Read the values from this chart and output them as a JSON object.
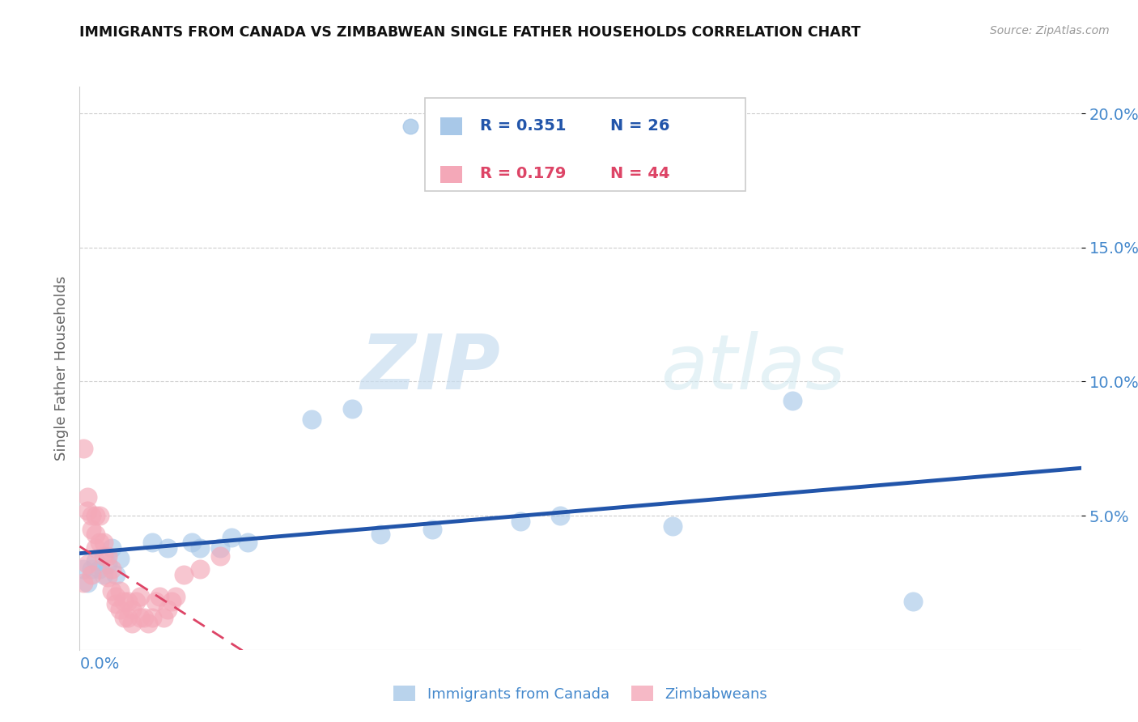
{
  "title": "IMMIGRANTS FROM CANADA VS ZIMBABWEAN SINGLE FATHER HOUSEHOLDS CORRELATION CHART",
  "source": "Source: ZipAtlas.com",
  "ylabel": "Single Father Households",
  "legend_labels": [
    "Immigrants from Canada",
    "Zimbabweans"
  ],
  "legend_r": [
    "R = 0.351",
    "R = 0.179"
  ],
  "legend_n": [
    "N = 26",
    "N = 44"
  ],
  "watermark_zip": "ZIP",
  "watermark_atlas": "atlas",
  "xlim": [
    0.0,
    0.25
  ],
  "ylim": [
    0.0,
    0.21
  ],
  "yticks": [
    0.05,
    0.1,
    0.15,
    0.2
  ],
  "ytick_labels": [
    "5.0%",
    "10.0%",
    "15.0%",
    "20.0%"
  ],
  "blue_color": "#a8c8e8",
  "pink_color": "#f4a8b8",
  "blue_line_color": "#2255aa",
  "pink_line_color": "#dd4466",
  "axis_label_color": "#4488cc",
  "canada_points": [
    [
      0.001,
      0.03
    ],
    [
      0.002,
      0.025
    ],
    [
      0.003,
      0.03
    ],
    [
      0.004,
      0.033
    ],
    [
      0.005,
      0.03
    ],
    [
      0.006,
      0.028
    ],
    [
      0.007,
      0.032
    ],
    [
      0.008,
      0.038
    ],
    [
      0.009,
      0.028
    ],
    [
      0.01,
      0.034
    ],
    [
      0.018,
      0.04
    ],
    [
      0.022,
      0.038
    ],
    [
      0.028,
      0.04
    ],
    [
      0.03,
      0.038
    ],
    [
      0.035,
      0.038
    ],
    [
      0.038,
      0.042
    ],
    [
      0.042,
      0.04
    ],
    [
      0.058,
      0.086
    ],
    [
      0.068,
      0.09
    ],
    [
      0.075,
      0.043
    ],
    [
      0.088,
      0.045
    ],
    [
      0.11,
      0.048
    ],
    [
      0.12,
      0.05
    ],
    [
      0.148,
      0.046
    ],
    [
      0.178,
      0.093
    ],
    [
      0.208,
      0.018
    ]
  ],
  "zimbabwe_points": [
    [
      0.001,
      0.075
    ],
    [
      0.002,
      0.057
    ],
    [
      0.002,
      0.052
    ],
    [
      0.003,
      0.05
    ],
    [
      0.003,
      0.045
    ],
    [
      0.004,
      0.05
    ],
    [
      0.004,
      0.043
    ],
    [
      0.005,
      0.05
    ],
    [
      0.005,
      0.04
    ],
    [
      0.006,
      0.04
    ],
    [
      0.006,
      0.035
    ],
    [
      0.007,
      0.035
    ],
    [
      0.007,
      0.027
    ],
    [
      0.008,
      0.03
    ],
    [
      0.008,
      0.022
    ],
    [
      0.009,
      0.02
    ],
    [
      0.009,
      0.017
    ],
    [
      0.01,
      0.022
    ],
    [
      0.01,
      0.015
    ],
    [
      0.011,
      0.018
    ],
    [
      0.011,
      0.012
    ],
    [
      0.012,
      0.018
    ],
    [
      0.012,
      0.012
    ],
    [
      0.013,
      0.015
    ],
    [
      0.013,
      0.01
    ],
    [
      0.014,
      0.018
    ],
    [
      0.015,
      0.012
    ],
    [
      0.015,
      0.02
    ],
    [
      0.016,
      0.012
    ],
    [
      0.017,
      0.01
    ],
    [
      0.018,
      0.012
    ],
    [
      0.019,
      0.018
    ],
    [
      0.02,
      0.02
    ],
    [
      0.021,
      0.012
    ],
    [
      0.022,
      0.015
    ],
    [
      0.023,
      0.018
    ],
    [
      0.024,
      0.02
    ],
    [
      0.026,
      0.028
    ],
    [
      0.03,
      0.03
    ],
    [
      0.035,
      0.035
    ],
    [
      0.001,
      0.025
    ],
    [
      0.002,
      0.032
    ],
    [
      0.003,
      0.028
    ],
    [
      0.004,
      0.038
    ]
  ]
}
